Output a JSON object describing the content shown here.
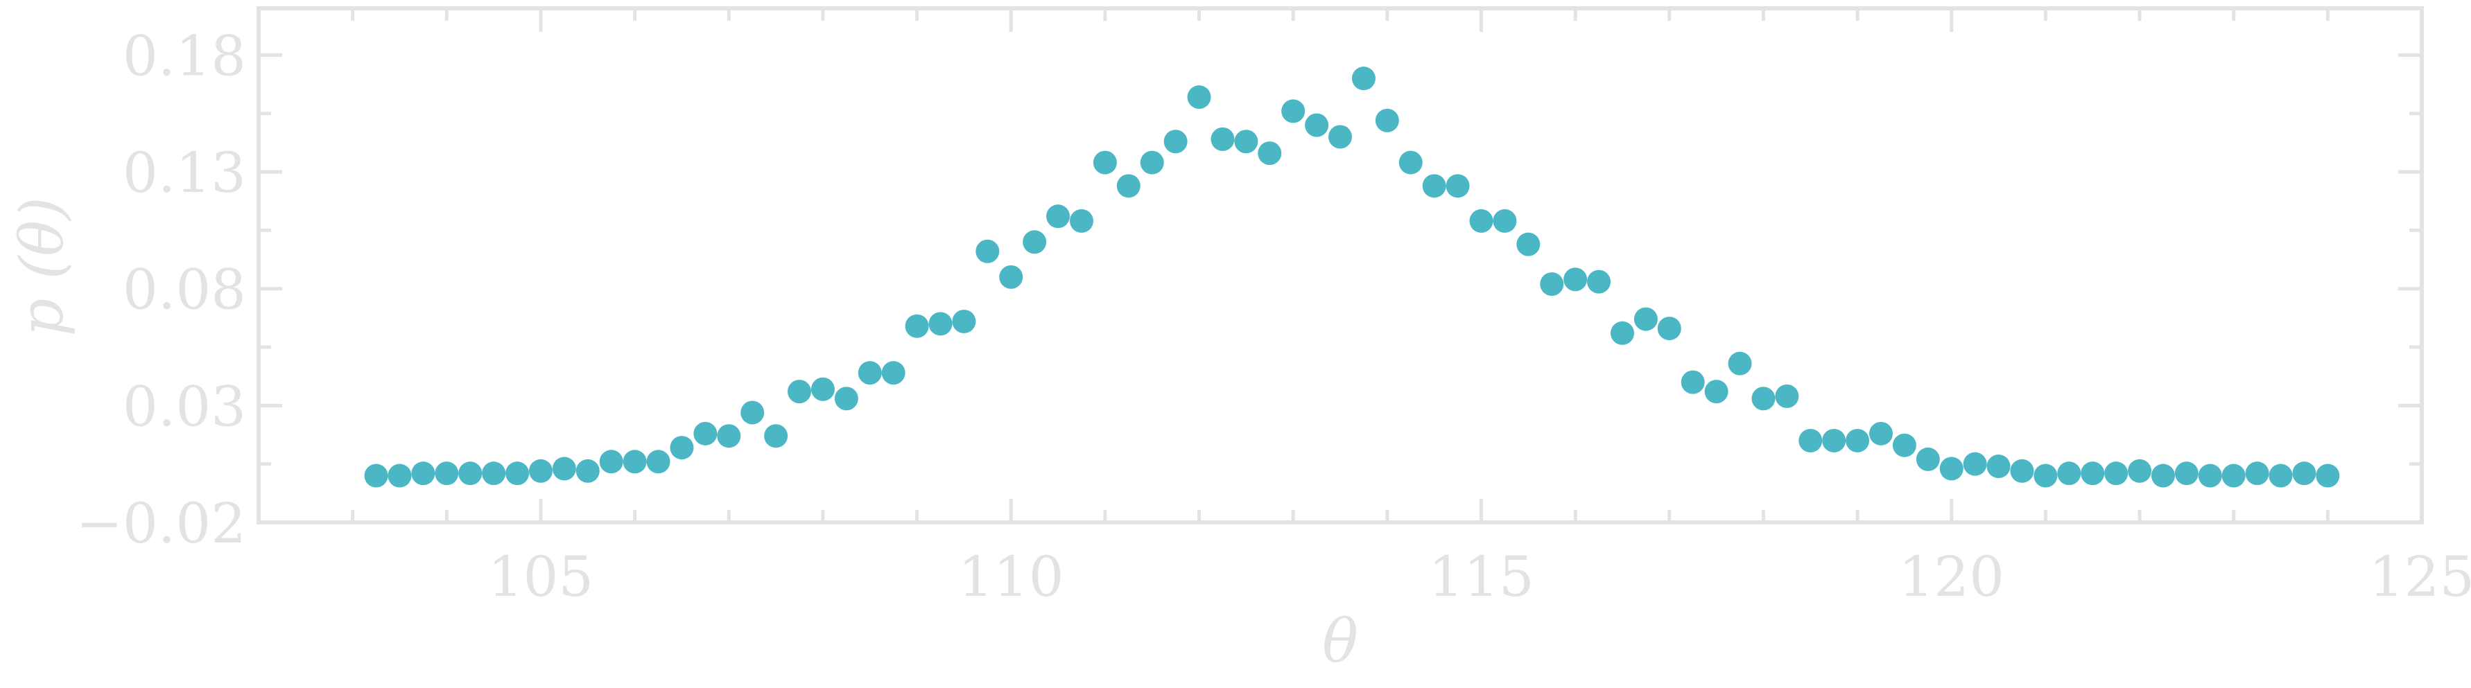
{
  "chart_data": {
    "type": "scatter",
    "xlabel": "θ",
    "ylabel": "p (θ)",
    "xlim": [
      102,
      125
    ],
    "ylim": [
      -0.02,
      0.2
    ],
    "xticks": [
      105,
      110,
      115,
      120,
      125
    ],
    "yticks": [
      -0.02,
      0.03,
      0.08,
      0.13,
      0.18
    ],
    "ytick_labels": [
      "−0.02",
      "0.03",
      "0.08",
      "0.13",
      "0.18"
    ],
    "grid": false,
    "marker_color": "#4bb7c5",
    "axis_color": "#e3e3e3",
    "x": [
      103.25,
      103.5,
      103.75,
      104,
      104.25,
      104.5,
      104.75,
      105,
      105.25,
      105.5,
      105.75,
      106,
      106.25,
      106.5,
      106.75,
      107,
      107.25,
      107.5,
      107.75,
      108,
      108.25,
      108.5,
      108.75,
      109,
      109.25,
      109.5,
      109.75,
      110,
      110.25,
      110.5,
      110.75,
      111,
      111.25,
      111.5,
      111.75,
      112,
      112.25,
      112.5,
      112.75,
      113,
      113.25,
      113.5,
      113.75,
      114,
      114.25,
      114.5,
      114.75,
      115,
      115.25,
      115.5,
      115.75,
      116,
      116.25,
      116.5,
      116.75,
      117,
      117.25,
      117.5,
      117.75,
      118,
      118.25,
      118.5,
      118.75,
      119,
      119.25,
      119.5,
      119.75,
      120,
      120.25,
      120.5,
      120.75,
      121,
      121.25,
      121.5,
      121.75,
      122,
      122.25,
      122.5,
      122.75,
      123,
      123.25,
      123.5,
      123.75,
      124
    ],
    "y": [
      0.0,
      0.0,
      0.001,
      0.001,
      0.001,
      0.001,
      0.001,
      0.002,
      0.003,
      0.002,
      0.006,
      0.006,
      0.006,
      0.012,
      0.018,
      0.017,
      0.027,
      0.017,
      0.036,
      0.037,
      0.033,
      0.044,
      0.044,
      0.064,
      0.065,
      0.066,
      0.096,
      0.085,
      0.1,
      0.111,
      0.109,
      0.134,
      0.124,
      0.134,
      0.143,
      0.162,
      0.144,
      0.143,
      0.138,
      0.156,
      0.15,
      0.145,
      0.17,
      0.152,
      0.134,
      0.124,
      0.124,
      0.109,
      0.109,
      0.099,
      0.082,
      0.084,
      0.083,
      0.061,
      0.067,
      0.063,
      0.04,
      0.036,
      0.048,
      0.033,
      0.034,
      0.015,
      0.015,
      0.015,
      0.018,
      0.013,
      0.007,
      0.003,
      0.005,
      0.004,
      0.002,
      0.0,
      0.001,
      0.001,
      0.001,
      0.002,
      0.0,
      0.001,
      0.0,
      0.0,
      0.001,
      0.0,
      0.001,
      0.0
    ]
  }
}
